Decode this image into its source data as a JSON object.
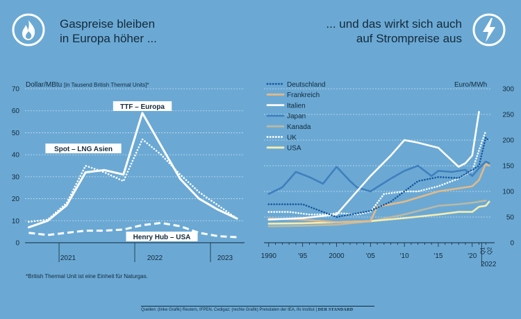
{
  "left_title": [
    "Gaspreise bleiben",
    "in Europa höher ..."
  ],
  "right_title": [
    "... und das wirkt sich auch",
    "auf Strompreise aus"
  ],
  "icons": {
    "left": "flame-icon",
    "right": "lightning-icon"
  },
  "footnote": "*British Thermal Unit ist eine Einheit für Naturgas.",
  "source": "Quellen: (linke Grafik) Reuters, IFPEN, Cedigaz; (rechte Grafik) Preisdaten der IEA, ifo Institut",
  "brand": "DER STANDARD",
  "chart_data": [
    {
      "type": "line",
      "ylabel": "Dollar/MBtu",
      "ylabel_note": "[in Tausend British Thermal Units]*",
      "ylim": [
        0,
        70
      ],
      "yticks": [
        0,
        10,
        20,
        30,
        40,
        50,
        60,
        70
      ],
      "xlim": [
        2020.55,
        2023.45
      ],
      "xlabels": [
        "2021",
        "2022",
        "2023"
      ],
      "x_sections": [
        2021.0,
        2022.0,
        2023.0
      ],
      "series": [
        {
          "name": "TTF – Europa",
          "style": "solid",
          "x": [
            2020.6,
            2020.85,
            2021.1,
            2021.35,
            2021.6,
            2021.85,
            2022.1,
            2022.35,
            2022.6,
            2022.85,
            2023.1,
            2023.35
          ],
          "values": [
            7,
            10,
            17,
            32,
            33,
            31,
            59,
            44,
            29,
            20,
            15,
            11
          ]
        },
        {
          "name": "Spot – LNG Asien",
          "style": "dotted",
          "x": [
            2020.6,
            2020.85,
            2021.1,
            2021.35,
            2021.6,
            2021.85,
            2022.1,
            2022.35,
            2022.6,
            2022.85,
            2023.1,
            2023.35
          ],
          "values": [
            9.5,
            10.5,
            18,
            35,
            32,
            28,
            47,
            40,
            31,
            23,
            17,
            11
          ]
        },
        {
          "name": "Henry Hub – USA",
          "style": "dashed",
          "x": [
            2020.6,
            2020.85,
            2021.1,
            2021.35,
            2021.6,
            2021.85,
            2022.1,
            2022.35,
            2022.6,
            2022.85,
            2023.1,
            2023.35
          ],
          "values": [
            4.5,
            3.5,
            4.5,
            5.5,
            5.5,
            6,
            8,
            9,
            7.5,
            4.5,
            3,
            2.5
          ]
        }
      ]
    },
    {
      "type": "line",
      "ylabel": "Euro/MWh",
      "ylim": [
        0,
        300
      ],
      "yticks": [
        0,
        50,
        100,
        150,
        200,
        250,
        300
      ],
      "xlim": [
        1989.3,
        2023.3
      ],
      "xlabels": [
        "1990",
        "'95",
        "2000",
        "'05",
        "'10",
        "'15",
        "'20"
      ],
      "xlabel_years": [
        1990,
        1995,
        2000,
        2005,
        2010,
        2015,
        2020
      ],
      "quarter_labels": [
        "Q1",
        "Q2"
      ],
      "quarter_year": "2022",
      "legend_position": "top-left",
      "series": [
        {
          "name": "Deutschland",
          "style": "dotted",
          "color": "#15569e",
          "x": [
            1990,
            1995,
            2000,
            2005,
            2008,
            2010,
            2012,
            2015,
            2018,
            2020,
            2021,
            2022,
            2022.5
          ],
          "values": [
            75,
            75,
            50,
            62,
            80,
            100,
            120,
            128,
            126,
            142,
            150,
            205,
            198
          ]
        },
        {
          "name": "Frankreich",
          "style": "solid",
          "color": "#e3b988",
          "x": [
            1990,
            1995,
            2000,
            2005,
            2006,
            2010,
            2015,
            2020,
            2021,
            2022,
            2022.5
          ],
          "values": [
            47,
            45,
            40,
            42,
            70,
            80,
            100,
            110,
            122,
            154,
            150
          ]
        },
        {
          "name": "Italien",
          "style": "solid",
          "color": "#ffffff",
          "x": [
            1990,
            1995,
            2000,
            2005,
            2008,
            2010,
            2012,
            2015,
            2018,
            2019,
            2020,
            2021
          ],
          "values": [
            45,
            48,
            55,
            130,
            170,
            200,
            195,
            185,
            148,
            155,
            170,
            255
          ]
        },
        {
          "name": "Japan",
          "style": "solid",
          "color": "#3f7fbd",
          "x": [
            1990,
            1992,
            1994,
            1996,
            1998,
            2000,
            2002,
            2003,
            2005,
            2008,
            2010,
            2012,
            2014,
            2015,
            2017,
            2019,
            2020,
            2021,
            2022,
            2022.5
          ],
          "values": [
            95,
            108,
            138,
            128,
            115,
            148,
            120,
            108,
            100,
            125,
            140,
            150,
            130,
            140,
            138,
            142,
            130,
            145,
            158,
            155
          ]
        },
        {
          "name": "Kanada",
          "style": "solid",
          "color": "#b9b9a4",
          "x": [
            1990,
            1995,
            2000,
            2005,
            2010,
            2015,
            2018,
            2020,
            2022
          ],
          "values": [
            32,
            33,
            35,
            42,
            55,
            72,
            75,
            78,
            82
          ]
        },
        {
          "name": "UK",
          "style": "dotted",
          "color": "#ffffff",
          "x": [
            1990,
            1993,
            1996,
            1999,
            2000,
            2003,
            2005,
            2007,
            2010,
            2012,
            2015,
            2018,
            2020,
            2021,
            2022
          ],
          "values": [
            60,
            60,
            55,
            55,
            58,
            55,
            60,
            95,
            100,
            100,
            110,
            125,
            140,
            180,
            218
          ]
        },
        {
          "name": "USA",
          "style": "solid",
          "color": "#f6edb0",
          "x": [
            1990,
            1995,
            2000,
            2005,
            2010,
            2015,
            2018,
            2020,
            2021,
            2022,
            2022.5
          ],
          "values": [
            37,
            38,
            40,
            42,
            48,
            55,
            60,
            60,
            70,
            72,
            80
          ]
        }
      ]
    }
  ]
}
